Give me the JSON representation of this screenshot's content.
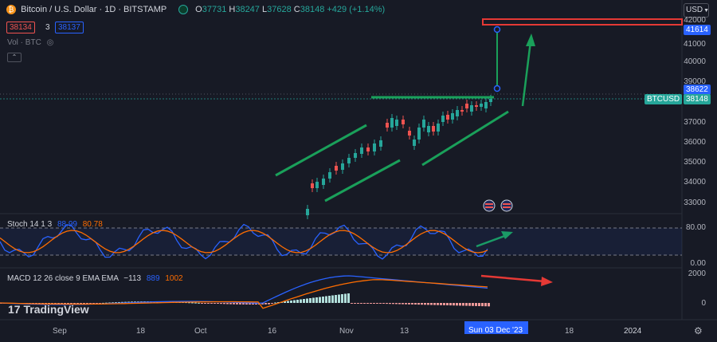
{
  "header": {
    "symbol_title": "Bitcoin / U.S. Dollar · 1D · BITSTAMP",
    "open_label": "O",
    "open": "37731",
    "high_label": "H",
    "high": "38247",
    "low_label": "L",
    "low": "37628",
    "close_label": "C",
    "close": "38148",
    "change": "+429 (+1.14%)",
    "sell_price": "38134",
    "spread": "3",
    "buy_price": "38137",
    "vol_label": "Vol · BTC"
  },
  "currency": "USD",
  "price_axis": {
    "labels": [
      "42000",
      "41000",
      "40000",
      "39000",
      "37000",
      "36000",
      "35000",
      "34000",
      "33000"
    ],
    "tag_41614": "41614",
    "tag_38622": "38622",
    "symbol_tag": "BTCUSD",
    "price_tag": "38148"
  },
  "stoch": {
    "label": "Stoch 14 1 3",
    "k": "88.99",
    "d": "80.78",
    "levels": [
      "80.00",
      "0.00"
    ]
  },
  "macd": {
    "label": "MACD 12 26 close 9 EMA EMA",
    "hist": "−113",
    "macd": "889",
    "signal": "1002",
    "levels": [
      "2000",
      "0"
    ]
  },
  "time_axis": {
    "labels": [
      "Sep",
      "18",
      "Oct",
      "16",
      "Nov",
      "13",
      "18",
      "2024"
    ],
    "crosshair": "Sun 03 Dec '23"
  },
  "brand": "TradingView",
  "colors": {
    "up": "#26a69a",
    "down": "#ef5350",
    "annotation": "#1aa05a",
    "red_annotation": "#e53935",
    "blue": "#2962ff",
    "orange": "#ff9800"
  }
}
